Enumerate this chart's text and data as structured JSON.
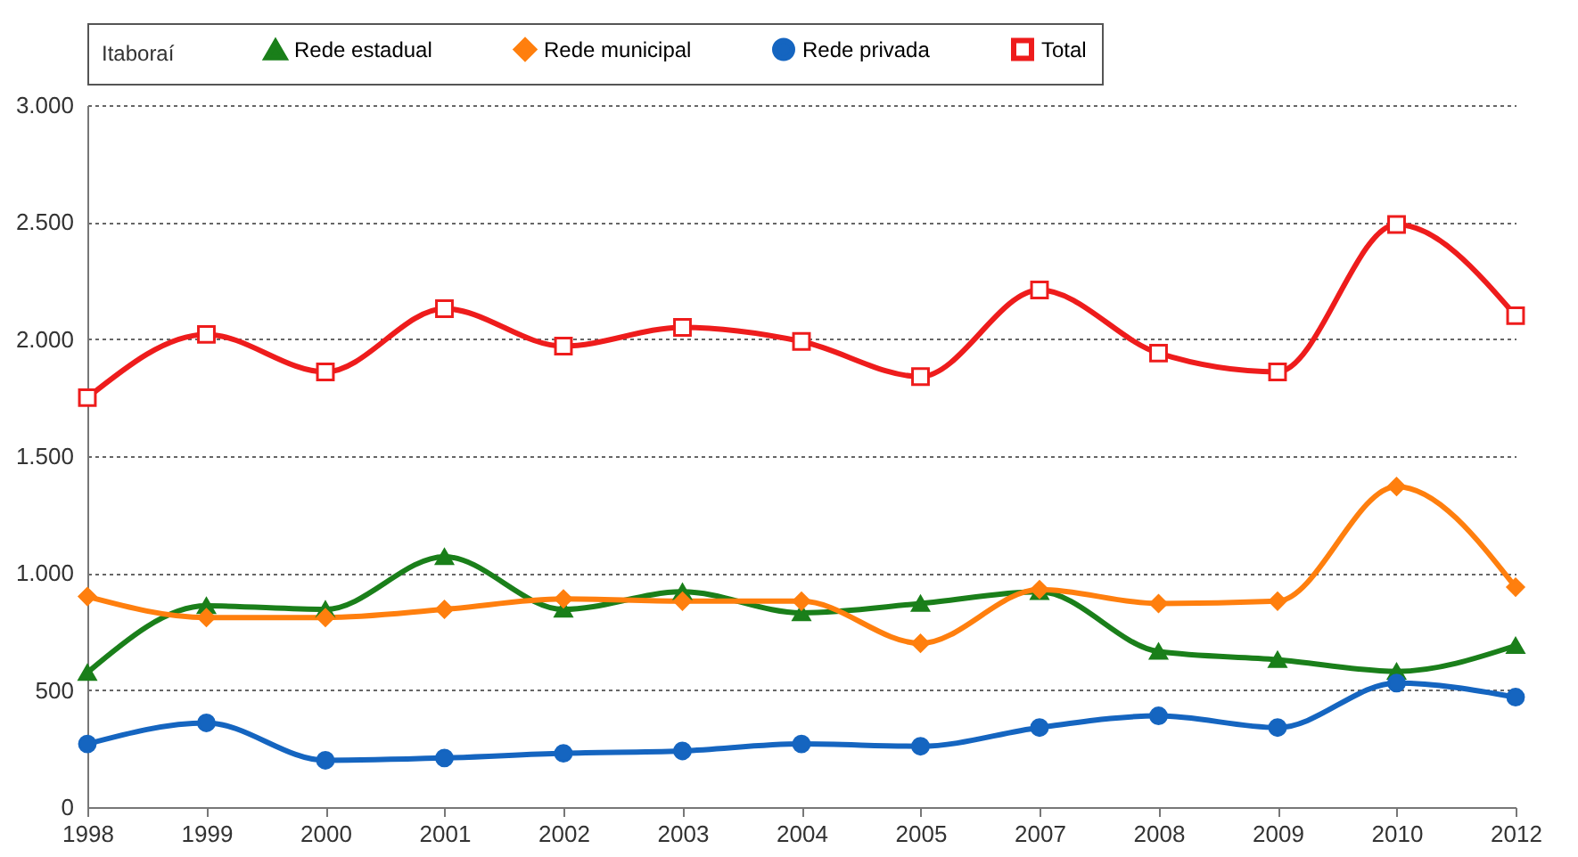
{
  "chart_data": {
    "type": "line",
    "legend_title": "Itaboraí",
    "legend": "top",
    "categories": [
      "1998",
      "1999",
      "2000",
      "2001",
      "2002",
      "2003",
      "2004",
      "2005",
      "2007",
      "2008",
      "2009",
      "2010",
      "2012"
    ],
    "ylim": [
      0,
      3000
    ],
    "yticks": [
      {
        "value": 0,
        "label": "0"
      },
      {
        "value": 500,
        "label": "500"
      },
      {
        "value": 1000,
        "label": "1.000"
      },
      {
        "value": 1500,
        "label": "1.500"
      },
      {
        "value": 2000,
        "label": "2.000"
      },
      {
        "value": 2500,
        "label": "2.500"
      },
      {
        "value": 3000,
        "label": "3.000"
      }
    ],
    "grid": "y",
    "line_style": "solid",
    "series": [
      {
        "name": "Rede estadual",
        "color": "#1a7f1a",
        "marker": "triangle",
        "values": [
          575,
          860,
          845,
          1070,
          845,
          920,
          830,
          870,
          920,
          665,
          630,
          580,
          690
        ]
      },
      {
        "name": "Rede municipal",
        "color": "#ff7f0e",
        "marker": "diamond",
        "values": [
          900,
          810,
          810,
          845,
          890,
          880,
          880,
          700,
          930,
          870,
          880,
          1370,
          940
        ]
      },
      {
        "name": "Rede privada",
        "color": "#1565c0",
        "marker": "circle",
        "values": [
          270,
          360,
          200,
          210,
          230,
          240,
          270,
          260,
          340,
          390,
          340,
          530,
          470
        ]
      },
      {
        "name": "Total",
        "color": "#ee1c1c",
        "marker": "square",
        "values": [
          1750,
          2020,
          1860,
          2130,
          1970,
          2050,
          1990,
          1840,
          2210,
          1940,
          1860,
          2490,
          2100
        ]
      }
    ]
  }
}
